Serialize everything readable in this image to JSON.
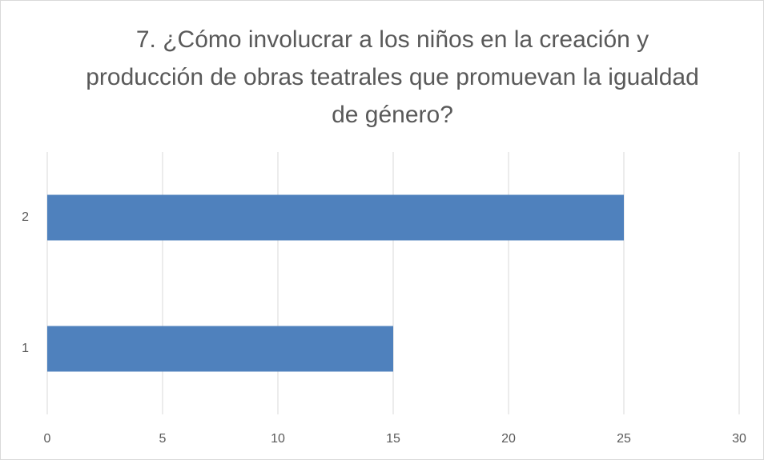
{
  "chart_data": {
    "type": "barh",
    "title": "7. ¿Cómo involucrar a los niños en la creación y producción de obras teatrales que promuevan la igualdad de género?",
    "categories": [
      "1",
      "2"
    ],
    "values": [
      15,
      25
    ],
    "color": "#4f81bd",
    "xlim": [
      0,
      30
    ],
    "xticks": [
      0,
      5,
      10,
      15,
      20,
      25,
      30
    ],
    "grid": true
  }
}
